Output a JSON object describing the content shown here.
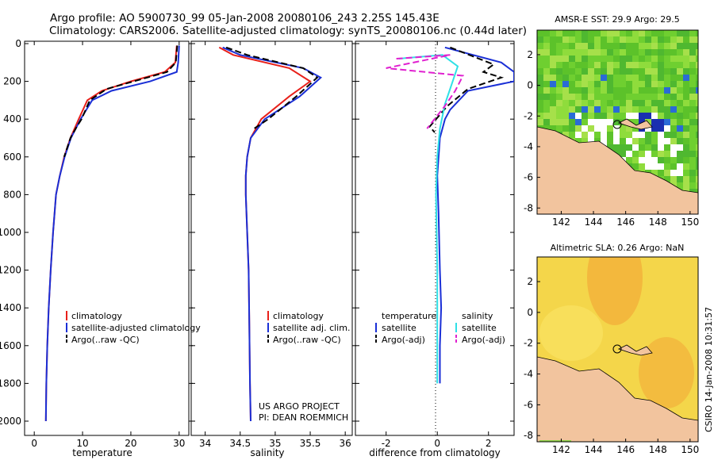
{
  "header": {
    "line1": "Argo profile: AO 5900730_99 05-Jan-2008 20080106_243 2.25S 145.43E",
    "line2": "Climatology: CARS2006. Satellite-adjusted climatology: synTS_20080106.nc (0.44d later)"
  },
  "side_label": "CSIRO 14-Jan-2008 10:31:57",
  "project_label": {
    "line1": "US ARGO PROJECT",
    "line2": "PI: DEAN ROEMMICH"
  },
  "depth_ticks": [
    "0",
    "200",
    "400",
    "600",
    "800",
    "1000",
    "1200",
    "1400",
    "1600",
    "1800",
    "2000"
  ],
  "panels": {
    "temperature": {
      "xlabel": "temperature",
      "xticks": [
        "0",
        "10",
        "20",
        "30"
      ],
      "legend": [
        "climatology",
        "satellite-adjusted climatology",
        "Argo(..raw -QC)"
      ]
    },
    "salinity": {
      "xlabel": "salinity",
      "xticks": [
        "34",
        "34.5",
        "35",
        "35.5",
        "36"
      ],
      "legend": [
        "climatology",
        "satellite adj. clim.",
        "Argo(..raw -QC)"
      ]
    },
    "difference": {
      "xlabel": "difference from climatology",
      "xticks": [
        "-2",
        "0",
        "2"
      ],
      "legend_temp_title": "temperature",
      "legend_sal_title": "salinity",
      "legend_temp": [
        "satellite",
        "Argo(-adj)"
      ],
      "legend_sal": [
        "satellite",
        "Argo(-adj)"
      ]
    },
    "sst_map": {
      "title": "AMSR-E SST: 29.9 Argo: 29.5",
      "xticks": [
        "142",
        "144",
        "146",
        "148",
        "150"
      ],
      "yticks": [
        "2",
        "0",
        "-2",
        "-4",
        "-6",
        "-8"
      ]
    },
    "sla_map": {
      "title": "Altimetric SLA: 0.26 Argo: NaN",
      "xticks": [
        "142",
        "144",
        "146",
        "148",
        "150"
      ],
      "yticks": [
        "2",
        "0",
        "-2",
        "-4",
        "-6",
        "-8"
      ]
    }
  },
  "colors": {
    "climatology": "#e8201a",
    "satellite": "#1a2fd6",
    "argo": "#000000",
    "sat_sal": "#2fe0e6",
    "argo_sal": "#e020d0",
    "land": "#f2c49e"
  },
  "chart_data": [
    {
      "type": "line",
      "name": "temperature_profile",
      "xlabel": "temperature",
      "ylabel": "",
      "xlim": [
        -2,
        32
      ],
      "ylim": [
        2050,
        0
      ],
      "series": [
        {
          "name": "climatology",
          "color": "#e8201a",
          "x": [
            29.5,
            29.2,
            27.0,
            20.0,
            14.0,
            11.0,
            9.2,
            7.5,
            6.2,
            5.3,
            4.5,
            3.9,
            3.4,
            3.0,
            2.7,
            2.5,
            2.4
          ],
          "y": [
            10,
            100,
            150,
            200,
            250,
            300,
            400,
            500,
            600,
            700,
            800,
            1000,
            1200,
            1400,
            1600,
            1800,
            2000
          ]
        },
        {
          "name": "satellite-adjusted climatology",
          "color": "#1a2fd6",
          "x": [
            30.0,
            29.8,
            29.5,
            24.0,
            16.0,
            12.0,
            9.6,
            7.6,
            6.3,
            5.3,
            4.5,
            3.9,
            3.4,
            3.0,
            2.7,
            2.5,
            2.4
          ],
          "y": [
            10,
            100,
            150,
            200,
            250,
            300,
            400,
            500,
            600,
            700,
            800,
            1000,
            1200,
            1400,
            1600,
            1800,
            2000
          ]
        },
        {
          "name": "Argo(..raw -QC)",
          "color": "#000000",
          "x": [
            29.6,
            29.3,
            27.5,
            22.0,
            15.0,
            11.5,
            9.8,
            8.8,
            7.5,
            6.2
          ],
          "y": [
            10,
            100,
            150,
            190,
            240,
            300,
            400,
            440,
            500,
            600
          ]
        }
      ]
    },
    {
      "type": "line",
      "name": "salinity_profile",
      "xlabel": "salinity",
      "ylabel": "",
      "xlim": [
        33.8,
        36.1
      ],
      "ylim": [
        2050,
        0
      ],
      "series": [
        {
          "name": "climatology",
          "color": "#e8201a",
          "x": [
            34.2,
            34.4,
            35.2,
            35.5,
            35.2,
            34.8,
            34.65,
            34.6,
            34.58,
            34.58,
            34.6,
            34.62,
            34.63,
            34.64,
            34.65
          ],
          "y": [
            20,
            60,
            130,
            200,
            280,
            400,
            500,
            600,
            700,
            800,
            1000,
            1200,
            1500,
            1800,
            2000
          ]
        },
        {
          "name": "satellite adj. clim.",
          "color": "#1a2fd6",
          "x": [
            34.25,
            34.5,
            35.4,
            35.65,
            35.35,
            34.85,
            34.65,
            34.6,
            34.58,
            34.58,
            34.6,
            34.62,
            34.63,
            34.64,
            34.65
          ],
          "y": [
            20,
            60,
            130,
            180,
            280,
            400,
            500,
            600,
            700,
            800,
            1000,
            1200,
            1500,
            1800,
            2000
          ]
        },
        {
          "name": "Argo(..raw -QC)",
          "color": "#000000",
          "x": [
            34.3,
            34.6,
            35.4,
            35.6,
            35.3,
            34.9,
            34.7
          ],
          "y": [
            20,
            60,
            130,
            180,
            280,
            400,
            450
          ]
        }
      ]
    },
    {
      "type": "line",
      "name": "difference_profile",
      "xlabel": "difference from climatology",
      "ylabel": "",
      "xlim": [
        -3.2,
        3.0
      ],
      "ylim": [
        2050,
        0
      ],
      "series": [
        {
          "name": "temperature satellite",
          "color": "#1a2fd6",
          "x": [
            0.3,
            2.5,
            3.0,
            3.0,
            1.2,
            0.5,
            0.3,
            0.1,
            0.0,
            0.05,
            0.1,
            0.15,
            0.1,
            0.1,
            0.1
          ],
          "y": [
            20,
            100,
            150,
            200,
            250,
            350,
            400,
            500,
            700,
            900,
            1200,
            1400,
            1600,
            1800,
            1800
          ]
        },
        {
          "name": "temperature Argo(-adj)",
          "color": "#000000",
          "x": [
            0.5,
            2.2,
            1.8,
            2.5,
            1.2,
            0.4,
            -0.3,
            -0.1
          ],
          "y": [
            20,
            110,
            150,
            180,
            240,
            330,
            440,
            470
          ]
        },
        {
          "name": "salinity satellite",
          "color": "#2fe0e6",
          "x": [
            -1.5,
            0.2,
            0.8,
            0.6,
            0.3,
            0.1,
            0.0,
            -0.05,
            0.0,
            0.0,
            0.0
          ],
          "y": [
            80,
            60,
            120,
            200,
            320,
            450,
            600,
            800,
            1200,
            1600,
            1800
          ]
        },
        {
          "name": "salinity Argo(-adj)",
          "color": "#e020d0",
          "x": [
            -1.6,
            0.5,
            -2.0,
            1.0,
            0.7,
            0.3,
            -0.4
          ],
          "y": [
            80,
            60,
            130,
            170,
            250,
            330,
            450
          ]
        }
      ]
    }
  ]
}
